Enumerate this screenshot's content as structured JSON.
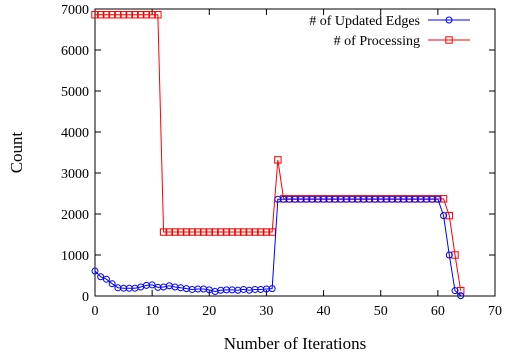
{
  "chart_data": {
    "type": "line",
    "title": "",
    "xlabel": "Number of Iterations",
    "ylabel": "Count",
    "xlim": [
      0,
      70
    ],
    "ylim": [
      0,
      7000
    ],
    "xticks": [
      0,
      10,
      20,
      30,
      40,
      50,
      60,
      70
    ],
    "yticks": [
      0,
      1000,
      2000,
      3000,
      4000,
      5000,
      6000,
      7000
    ],
    "grid": false,
    "legend_position": "top-right",
    "series": [
      {
        "name": "# of Updated Edges",
        "color": "#0000ff",
        "marker": "circle",
        "x": [
          0,
          1,
          2,
          3,
          4,
          5,
          6,
          7,
          8,
          9,
          10,
          11,
          12,
          13,
          14,
          15,
          16,
          17,
          18,
          19,
          20,
          21,
          22,
          23,
          24,
          25,
          26,
          27,
          28,
          29,
          30,
          31,
          32,
          33,
          34,
          35,
          36,
          37,
          38,
          39,
          40,
          41,
          42,
          43,
          44,
          45,
          46,
          47,
          48,
          49,
          50,
          51,
          52,
          53,
          54,
          55,
          56,
          57,
          58,
          59,
          60,
          61,
          62,
          63,
          64
        ],
        "values": [
          610,
          470,
          410,
          300,
          200,
          190,
          190,
          190,
          220,
          260,
          270,
          210,
          220,
          250,
          220,
          200,
          180,
          160,
          170,
          170,
          150,
          110,
          140,
          150,
          150,
          140,
          160,
          140,
          160,
          160,
          170,
          180,
          2360,
          2360,
          2360,
          2360,
          2360,
          2360,
          2360,
          2360,
          2360,
          2360,
          2360,
          2360,
          2360,
          2360,
          2360,
          2360,
          2360,
          2360,
          2360,
          2360,
          2360,
          2360,
          2360,
          2360,
          2360,
          2360,
          2360,
          2360,
          2360,
          1960,
          1000,
          130,
          10
        ]
      },
      {
        "name": "# of Processing",
        "color": "#ff0000",
        "marker": "square",
        "x": [
          0,
          1,
          2,
          3,
          4,
          5,
          6,
          7,
          8,
          9,
          10,
          11,
          12,
          13,
          14,
          15,
          16,
          17,
          18,
          19,
          20,
          21,
          22,
          23,
          24,
          25,
          26,
          27,
          28,
          29,
          30,
          31,
          32,
          33,
          34,
          35,
          36,
          37,
          38,
          39,
          40,
          41,
          42,
          43,
          44,
          45,
          46,
          47,
          48,
          49,
          50,
          51,
          52,
          53,
          54,
          55,
          56,
          57,
          58,
          59,
          60,
          61,
          62,
          63,
          64
        ],
        "values": [
          6860,
          6860,
          6860,
          6860,
          6860,
          6860,
          6860,
          6860,
          6860,
          6860,
          6860,
          6860,
          1560,
          1560,
          1560,
          1560,
          1560,
          1560,
          1560,
          1560,
          1560,
          1560,
          1560,
          1560,
          1560,
          1560,
          1560,
          1560,
          1560,
          1560,
          1560,
          1560,
          3320,
          2370,
          2370,
          2370,
          2370,
          2370,
          2370,
          2370,
          2370,
          2370,
          2370,
          2370,
          2370,
          2370,
          2370,
          2370,
          2370,
          2370,
          2370,
          2370,
          2370,
          2370,
          2370,
          2370,
          2370,
          2370,
          2370,
          2370,
          2370,
          2370,
          1960,
          1000,
          130
        ]
      }
    ]
  }
}
